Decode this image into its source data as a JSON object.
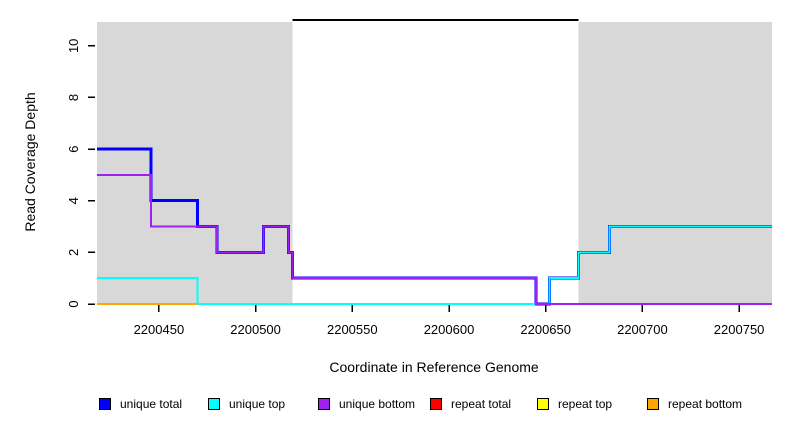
{
  "axes": {
    "x": {
      "label": "Coordinate in Reference Genome",
      "ticks": [
        2200450,
        2200500,
        2200550,
        2200600,
        2200650,
        2200700,
        2200750
      ],
      "range": [
        2200418,
        2200767
      ]
    },
    "y": {
      "label": "Read Coverage Depth",
      "ticks": [
        0,
        2,
        4,
        6,
        8,
        10
      ],
      "range": [
        0,
        11
      ]
    }
  },
  "chart_data": {
    "type": "line",
    "style": "step",
    "title": "",
    "xlabel": "Coordinate in Reference Genome",
    "ylabel": "Read Coverage Depth",
    "xlim": [
      2200418,
      2200767
    ],
    "ylim": [
      0,
      11
    ],
    "grid": false,
    "shading_color": "#D8D8D8",
    "shaded_regions": [
      [
        2200418,
        2200519
      ],
      [
        2200667,
        2200767
      ]
    ],
    "top_boundary_line": {
      "color": "#000000",
      "y": 11,
      "x_start": 2200519,
      "x_end": 2200667
    },
    "series": [
      {
        "name": "unique total",
        "color": "#0000FF",
        "line_width": 3,
        "steps": [
          [
            2200418,
            6
          ],
          [
            2200446,
            4
          ],
          [
            2200470,
            3
          ],
          [
            2200480,
            2
          ],
          [
            2200504,
            3
          ],
          [
            2200517,
            2
          ],
          [
            2200519,
            1
          ],
          [
            2200645,
            0
          ],
          [
            2200652,
            1
          ],
          [
            2200667,
            2
          ],
          [
            2200683,
            3
          ]
        ],
        "x_end": 2200767
      },
      {
        "name": "unique top",
        "color": "#00FFFF",
        "line_width": 2,
        "steps": [
          [
            2200418,
            1
          ],
          [
            2200470,
            0
          ],
          [
            2200652,
            1
          ],
          [
            2200667,
            2
          ],
          [
            2200683,
            3
          ]
        ],
        "x_end": 2200767
      },
      {
        "name": "unique bottom",
        "color": "#A020F0",
        "line_width": 2,
        "steps": [
          [
            2200418,
            5
          ],
          [
            2200446,
            3
          ],
          [
            2200480,
            2
          ],
          [
            2200504,
            3
          ],
          [
            2200517,
            2
          ],
          [
            2200519,
            1
          ],
          [
            2200645,
            0
          ]
        ],
        "x_end": 2200767
      },
      {
        "name": "repeat total",
        "color": "#FF0000",
        "line_width": 2,
        "steps": [],
        "x_end": null
      },
      {
        "name": "repeat top",
        "color": "#FFFF00",
        "line_width": 2,
        "steps": [],
        "x_end": null
      },
      {
        "name": "repeat bottom",
        "color": "#FFA500",
        "line_width": 2,
        "steps": [
          [
            2200418,
            0
          ]
        ],
        "x_end": 2200470
      }
    ],
    "legend_position": "bottom"
  },
  "legend": {
    "items": [
      {
        "label": "unique total",
        "color": "#0000FF"
      },
      {
        "label": "unique top",
        "color": "#00FFFF"
      },
      {
        "label": "unique bottom",
        "color": "#A020F0"
      },
      {
        "label": "repeat total",
        "color": "#FF0000"
      },
      {
        "label": "repeat top",
        "color": "#FFFF00"
      },
      {
        "label": "repeat bottom",
        "color": "#FFA500"
      }
    ]
  }
}
